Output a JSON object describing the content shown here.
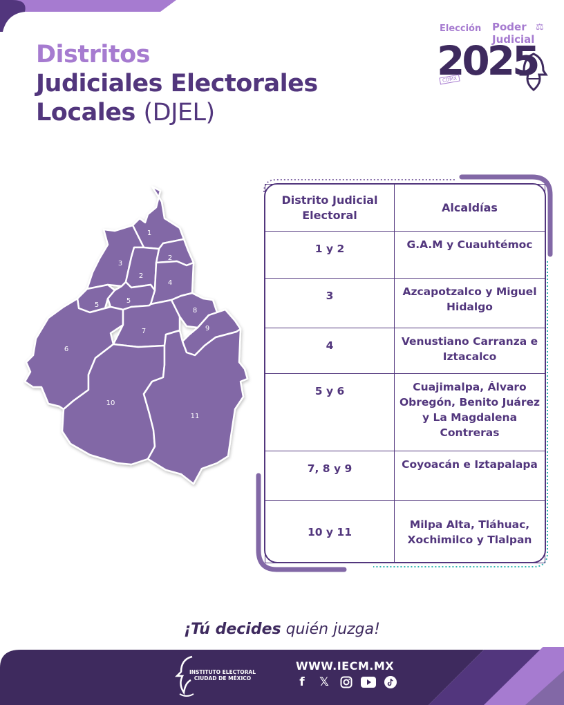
{
  "header": {
    "title_line1": "Distritos",
    "title_line2": "Judiciales Electorales",
    "title_line3": "Locales",
    "title_abbr": "(DJEL)"
  },
  "logo": {
    "eleccion": "Elección",
    "poder": "Poder",
    "judicial": "Judicial",
    "year": "2025",
    "cdmx": "CDMX"
  },
  "map": {
    "district_labels": [
      "1",
      "2",
      "2",
      "3",
      "4",
      "5",
      "5",
      "6",
      "7",
      "8",
      "9",
      "10",
      "11"
    ]
  },
  "table": {
    "headers": [
      "Distrito Judicial Electoral",
      "Alcaldías"
    ],
    "rows": [
      {
        "distrito": "1 y 2",
        "alcaldias": "G.A.M y Cuauhtémoc"
      },
      {
        "distrito": "3",
        "alcaldias": "Azcapotzalco y Miguel Hidalgo"
      },
      {
        "distrito": "4",
        "alcaldias": "Venustiano Carranza e Iztacalco"
      },
      {
        "distrito": "5 y 6",
        "alcaldias": "Cuajimalpa, Álvaro Obregón, Benito Juárez y La Magdalena Contreras"
      },
      {
        "distrito": "7, 8 y 9",
        "alcaldias": "Coyoacán e Iztapalapa"
      },
      {
        "distrito": "10 y 11",
        "alcaldias": "Milpa Alta, Tláhuac, Xochimilco y Tlalpan"
      }
    ]
  },
  "slogan": {
    "p1": "¡Tú decides",
    "p2": " quién juzga!"
  },
  "footer": {
    "institute_line1": "INSTITUTO ELECTORAL",
    "institute_line2": "CIUDAD DE MÉXICO",
    "url": "WWW.IECM.MX",
    "social_icons": [
      "facebook-icon",
      "x-icon",
      "instagram-icon",
      "youtube-icon",
      "tiktok-icon"
    ]
  },
  "colors": {
    "dark_purple": "#52367d",
    "light_purple": "#a67bd0",
    "map_fill": "#8268a6",
    "footer_bg": "#3e2a5e",
    "teal": "#2fb5b0"
  }
}
